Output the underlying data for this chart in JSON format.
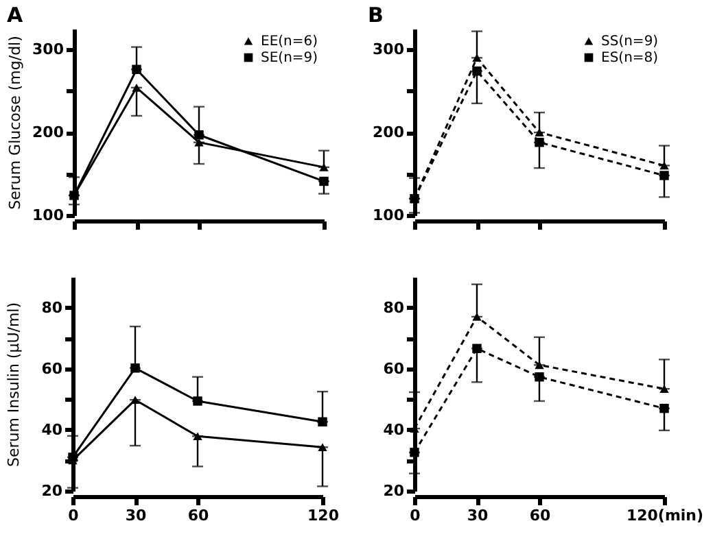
{
  "chart_data": [
    {
      "type": "line",
      "title": "A",
      "ylabel": "Serum Glucose (mg/dl)",
      "x": [
        0,
        30,
        60,
        120
      ],
      "xlim": [
        0,
        120
      ],
      "xticks": [
        0,
        30,
        60,
        120
      ],
      "ylim": [
        100,
        325
      ],
      "yticks": [
        100,
        {
          "value": 150,
          "label": null
        },
        200,
        {
          "value": 250,
          "label": null
        },
        300
      ],
      "tick_labels": "y",
      "legend": "top right",
      "series": [
        {
          "name": "EE(n=6)",
          "color": "#000000",
          "marker": "triangle",
          "line_style": "solid",
          "values": [
            124,
            254,
            188,
            158
          ],
          "errors": [
            [
              113,
              124
            ],
            [
              220,
              254
            ],
            [
              162,
              188
            ],
            [
              158,
              178
            ]
          ]
        },
        {
          "name": "SE(n=9)",
          "color": "#000000",
          "marker": "square",
          "line_style": "solid",
          "values": [
            124,
            276,
            197,
            141
          ],
          "errors": [
            [
              124,
              146
            ],
            [
              276,
              303
            ],
            [
              197,
              231
            ],
            [
              126,
              141
            ]
          ]
        }
      ]
    },
    {
      "type": "line",
      "title": "B",
      "x": [
        0,
        30,
        60,
        120
      ],
      "xlim": [
        0,
        120
      ],
      "xticks": [
        0,
        30,
        60,
        120
      ],
      "ylim": [
        100,
        325
      ],
      "yticks": [
        100,
        {
          "value": 150,
          "label": null
        },
        200,
        {
          "value": 250,
          "label": null
        },
        300
      ],
      "tick_labels": "y",
      "legend": "top right",
      "series": [
        {
          "name": "SS(n=9)",
          "color": "#000000",
          "marker": "triangle",
          "line_style": "dashed",
          "values": [
            120,
            290,
            200,
            160
          ],
          "errors": [
            [
              120,
              145
            ],
            [
              290,
              322
            ],
            [
              200,
              224
            ],
            [
              160,
              184
            ]
          ]
        },
        {
          "name": "ES(n=8)",
          "color": "#000000",
          "marker": "square",
          "line_style": "dashed",
          "values": [
            120,
            274,
            188,
            148
          ],
          "errors": [
            [
              103,
              120
            ],
            [
              235,
              274
            ],
            [
              157,
              188
            ],
            [
              122,
              148
            ]
          ]
        }
      ]
    },
    {
      "type": "line",
      "ylabel": "Serum Insulin (μU/ml)",
      "x": [
        0,
        30,
        60,
        120
      ],
      "xlim": [
        0,
        120
      ],
      "xticks": [
        0,
        30,
        60,
        120
      ],
      "ylim": [
        20,
        90
      ],
      "yticks": [
        20,
        {
          "value": 30,
          "label": null
        },
        40,
        {
          "value": 50,
          "label": null
        },
        60,
        {
          "value": 70,
          "label": null
        },
        80
      ],
      "series": [
        {
          "color": "#000000",
          "marker": "triangle",
          "line_style": "solid",
          "values": [
            30,
            49.8,
            37.9,
            34.3
          ],
          "errors": [
            [
              21,
              30
            ],
            [
              34.8,
              49.8
            ],
            [
              28,
              37.9
            ],
            [
              21.5,
              34.3
            ]
          ]
        },
        {
          "color": "#000000",
          "marker": "square",
          "line_style": "solid",
          "values": [
            31,
            60.2,
            49.4,
            42.6
          ],
          "errors": [
            [
              31,
              38
            ],
            [
              60.2,
              73.8
            ],
            [
              49.4,
              57.3
            ],
            [
              42.6,
              52.5
            ]
          ]
        }
      ]
    },
    {
      "type": "line",
      "x": [
        0,
        30,
        60,
        120
      ],
      "xlim": [
        0,
        120
      ],
      "xticks": [
        0,
        30,
        60,
        {
          "value": 120,
          "label": "120(min)"
        }
      ],
      "ylim": [
        20,
        90
      ],
      "yticks": [
        20,
        {
          "value": 30,
          "label": null
        },
        40,
        {
          "value": 50,
          "label": null
        },
        60,
        {
          "value": 70,
          "label": null
        },
        80
      ],
      "series": [
        {
          "color": "#000000",
          "marker": "triangle",
          "line_style": "dashed",
          "values": [
            40.4,
            77,
            61.2,
            53.4
          ],
          "errors": [
            [
              40.4,
              52.3
            ],
            [
              77,
              87.6
            ],
            [
              61.2,
              70.3
            ],
            [
              53.4,
              63
            ]
          ]
        },
        {
          "color": "#000000",
          "marker": "square",
          "line_style": "dashed",
          "values": [
            32.6,
            66.6,
            57.3,
            47
          ],
          "errors": [
            [
              25.7,
              32.6
            ],
            [
              55.6,
              66.6
            ],
            [
              49.4,
              57.3
            ],
            [
              39.8,
              47
            ]
          ]
        }
      ]
    }
  ]
}
